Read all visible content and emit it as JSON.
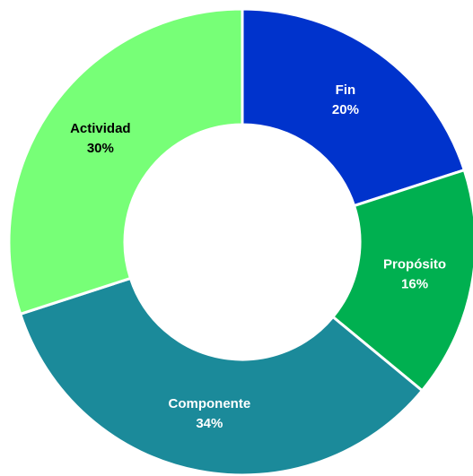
{
  "chart_data": {
    "type": "donut",
    "categories": [
      "Fin",
      "Propósito",
      "Componente",
      "Actividad"
    ],
    "values": [
      20,
      16,
      34,
      30
    ],
    "value_labels": [
      "20%",
      "16%",
      "34%",
      "30%"
    ],
    "colors": [
      "#0033cc",
      "#00b050",
      "#1b8a9a",
      "#77ff77"
    ],
    "label_colors": [
      "#ffffff",
      "#ffffff",
      "#ffffff",
      "#000000"
    ]
  }
}
